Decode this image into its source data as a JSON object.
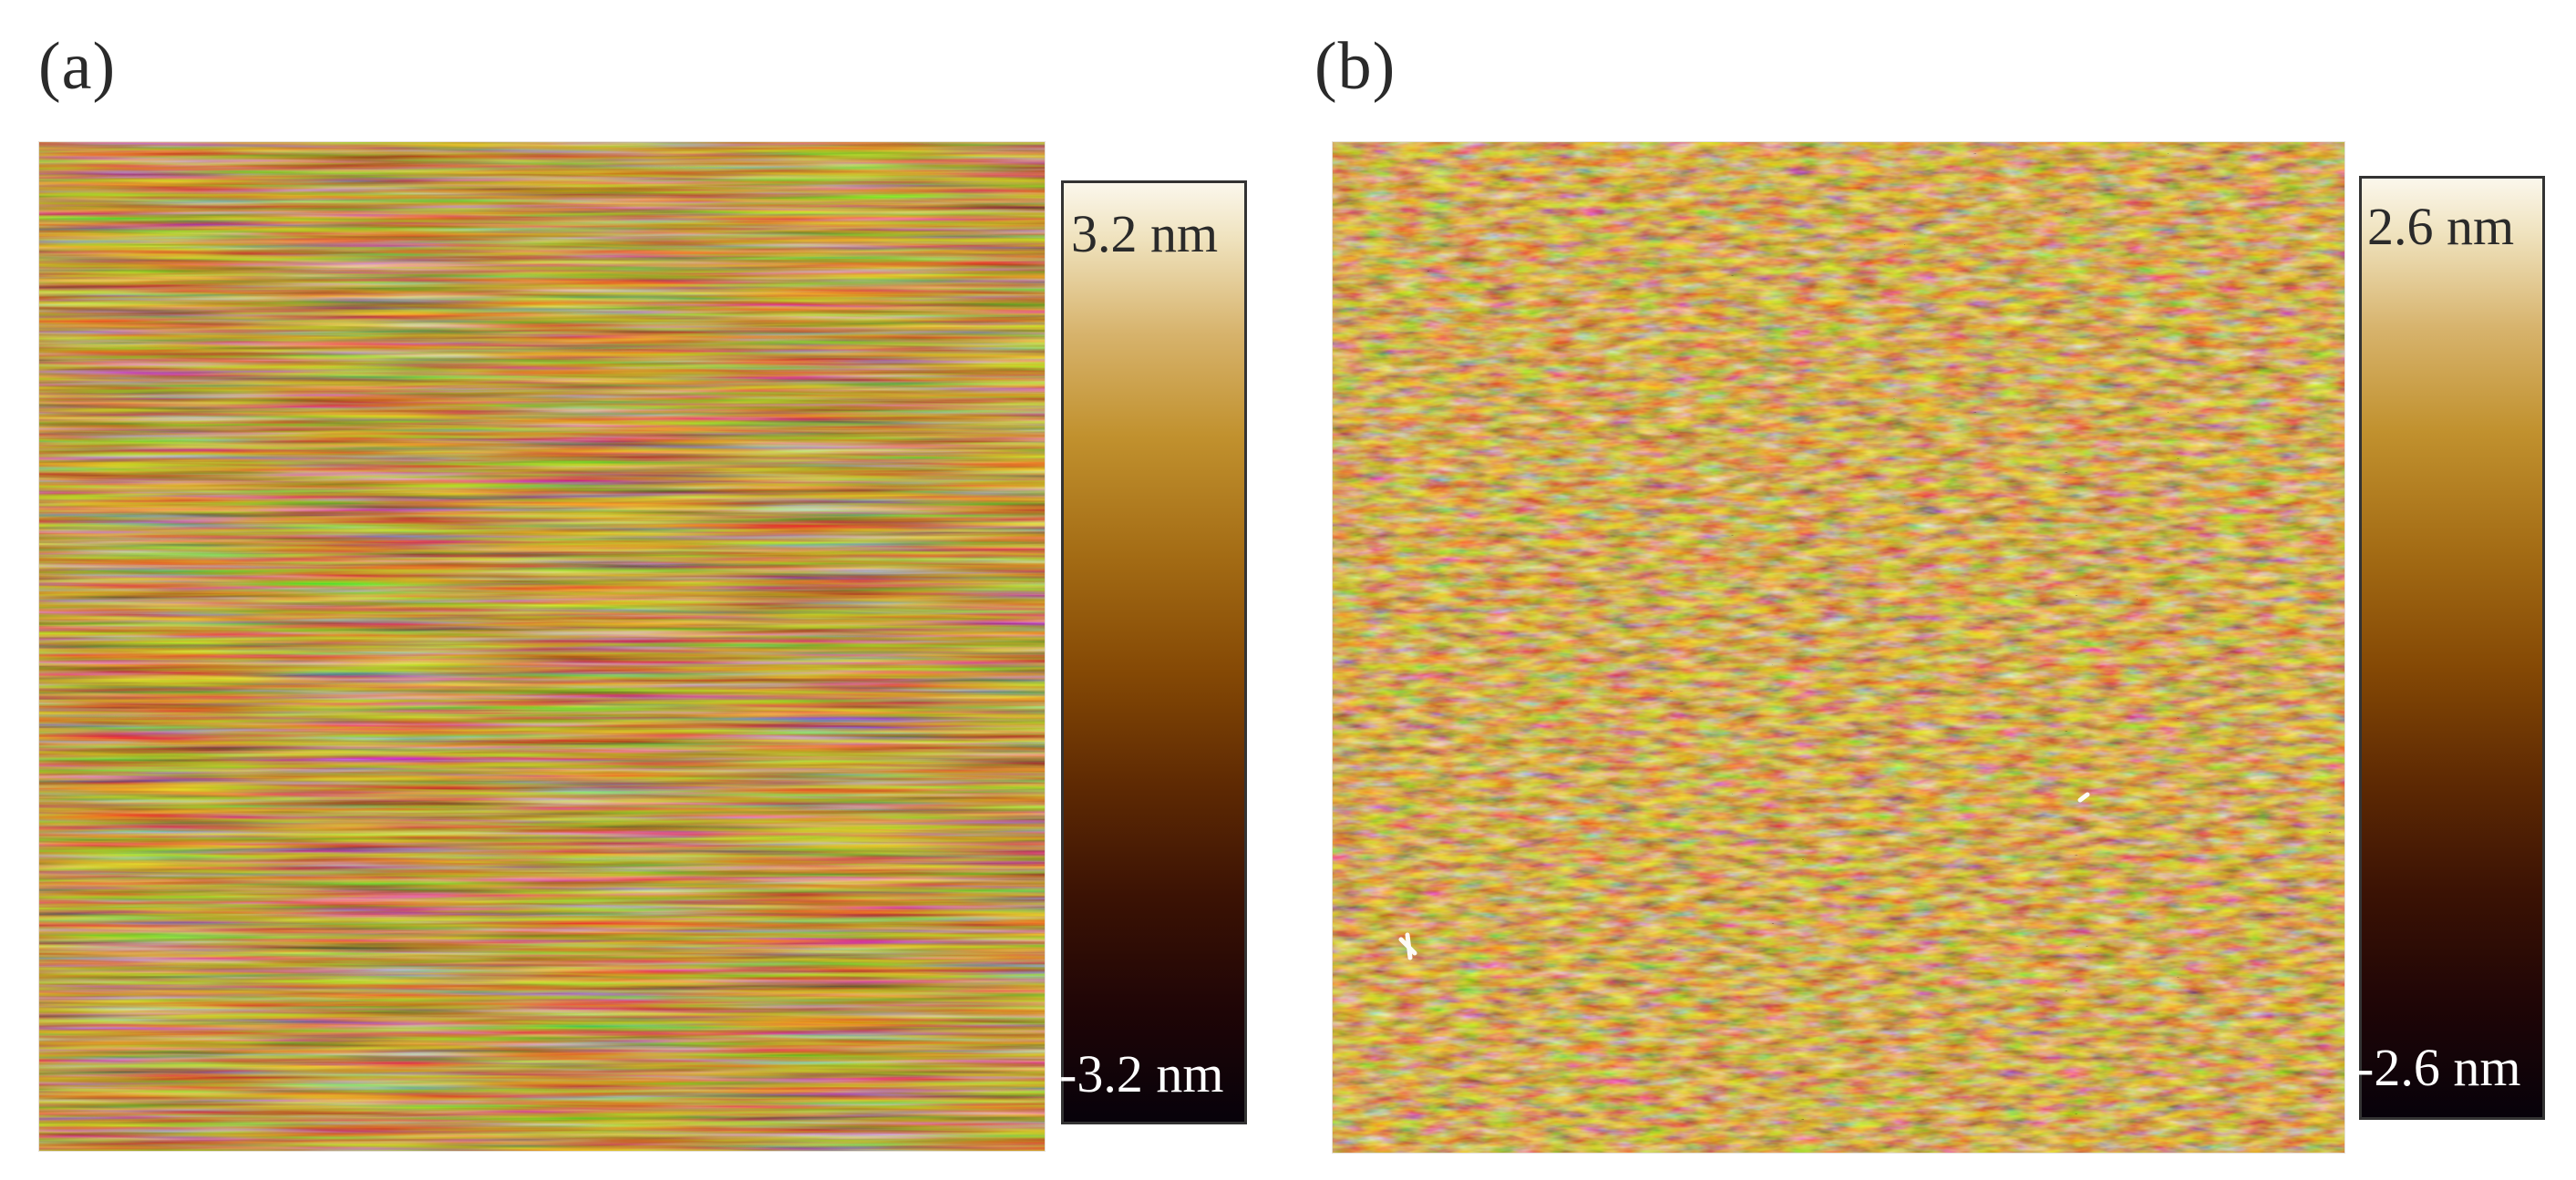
{
  "panels": [
    {
      "label": "(a)",
      "scale_max": "3.2 nm",
      "scale_min": "-3.2 nm",
      "image_description_icon": "afm-height-map-horizontal-streaks"
    },
    {
      "label": "(b)",
      "scale_max": "2.6 nm",
      "scale_min": "-2.6 nm",
      "image_description_icon": "afm-height-map-herringbone"
    }
  ],
  "colormap": {
    "name": "afmhot-brown",
    "stops": [
      "#07020a",
      "#3b1204",
      "#854905",
      "#c1912e",
      "#efe2bd",
      "#fbf7ec"
    ]
  }
}
